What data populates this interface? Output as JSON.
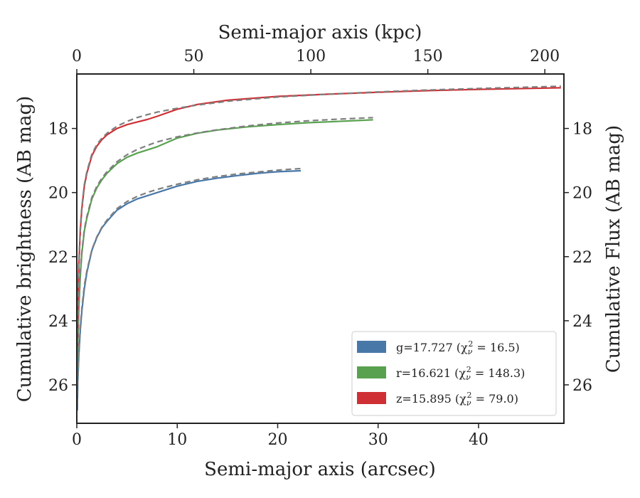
{
  "chart_data": {
    "type": "line",
    "xlabel_bottom": "Semi-major axis (arcsec)",
    "xlabel_top": "Semi-major axis (kpc)",
    "ylabel_left": "Cumulative brightness (AB mag)",
    "ylabel_right": "Cumulative Flux (AB mag)",
    "xlim": [
      0,
      48.5
    ],
    "ylim": [
      27.2,
      16.3
    ],
    "y_inverted": true,
    "x_ticks": [
      "0",
      "10",
      "20",
      "30",
      "40"
    ],
    "x_tick_values": [
      0,
      10,
      20,
      30,
      40
    ],
    "x_top_ticks": [
      "0",
      "50",
      "100",
      "150",
      "200"
    ],
    "x_top_tick_values_arcsec": [
      0,
      11.65,
      23.3,
      34.95,
      46.6
    ],
    "y_ticks": [
      "18",
      "20",
      "22",
      "24",
      "26"
    ],
    "y_tick_values": [
      18,
      20,
      22,
      24,
      26
    ],
    "grid": false,
    "legend_position": "lower-right",
    "legend": [
      {
        "band": "g",
        "label": "g=17.727 (χ",
        "sub": "ν",
        "sup": "2",
        "label_tail": " = 16.5)",
        "color": "#4878a8"
      },
      {
        "band": "r",
        "label": "r=16.621 (χ",
        "sub": "ν",
        "sup": "2",
        "label_tail": " = 148.3)",
        "color": "#59a14f"
      },
      {
        "band": "z",
        "label": "z=15.895 (χ",
        "sub": "ν",
        "sup": "2",
        "label_tail": " = 79.0)",
        "color": "#cf3035"
      }
    ],
    "series": [
      {
        "name": "g",
        "color": "#4878a8",
        "x": [
          0.05,
          0.1,
          0.2,
          0.35,
          0.5,
          0.75,
          1.0,
          1.5,
          2,
          2.5,
          3,
          4,
          5,
          6,
          7,
          8,
          10,
          12,
          14,
          16,
          18,
          20,
          22.3
        ],
        "y": [
          26.8,
          25.9,
          25.1,
          24.3,
          23.7,
          23.0,
          22.5,
          21.8,
          21.4,
          21.1,
          20.9,
          20.55,
          20.35,
          20.2,
          20.1,
          20.0,
          19.8,
          19.65,
          19.55,
          19.47,
          19.4,
          19.35,
          19.32
        ],
        "model_x": [
          0.05,
          0.1,
          0.2,
          0.35,
          0.5,
          0.75,
          1.0,
          1.5,
          2,
          2.5,
          3,
          4,
          5,
          6,
          7,
          8,
          10,
          12,
          14,
          16,
          18,
          20,
          22.3
        ],
        "model_y": [
          26.6,
          25.8,
          25.0,
          24.2,
          23.6,
          22.9,
          22.45,
          21.78,
          21.38,
          21.08,
          20.86,
          20.5,
          20.28,
          20.12,
          20.0,
          19.9,
          19.74,
          19.6,
          19.5,
          19.42,
          19.36,
          19.3,
          19.25
        ]
      },
      {
        "name": "r",
        "color": "#59a14f",
        "x": [
          0.05,
          0.1,
          0.2,
          0.35,
          0.5,
          0.75,
          1.0,
          1.5,
          2,
          2.5,
          3,
          4,
          5,
          6,
          7,
          8,
          10,
          12,
          14,
          17,
          20,
          23,
          26,
          29.5
        ],
        "y": [
          25.8,
          24.8,
          23.7,
          22.6,
          21.9,
          21.2,
          20.8,
          20.2,
          19.85,
          19.6,
          19.4,
          19.1,
          18.9,
          18.77,
          18.67,
          18.57,
          18.3,
          18.15,
          18.05,
          17.95,
          17.88,
          17.82,
          17.78,
          17.73
        ],
        "model_x": [
          0.05,
          0.1,
          0.2,
          0.35,
          0.5,
          0.75,
          1.0,
          1.5,
          2,
          2.5,
          3,
          4,
          5,
          6,
          7,
          8,
          10,
          12,
          14,
          17,
          20,
          23,
          26,
          29.5
        ],
        "model_y": [
          25.7,
          24.7,
          23.6,
          22.5,
          21.85,
          21.15,
          20.75,
          20.15,
          19.8,
          19.55,
          19.35,
          19.04,
          18.82,
          18.66,
          18.53,
          18.42,
          18.26,
          18.14,
          18.04,
          17.92,
          17.83,
          17.76,
          17.71,
          17.66
        ]
      },
      {
        "name": "z",
        "color": "#cf3035",
        "x": [
          0.05,
          0.1,
          0.2,
          0.35,
          0.5,
          0.75,
          1.0,
          1.5,
          2,
          2.5,
          3,
          4,
          5,
          6,
          7,
          8,
          10,
          12,
          15,
          20,
          25,
          30,
          35,
          40,
          45,
          48.2
        ],
        "y": [
          24.8,
          23.6,
          22.3,
          21.2,
          20.5,
          19.8,
          19.4,
          18.85,
          18.55,
          18.35,
          18.2,
          18.0,
          17.88,
          17.8,
          17.72,
          17.62,
          17.4,
          17.25,
          17.12,
          17.0,
          16.93,
          16.87,
          16.82,
          16.78,
          16.75,
          16.73
        ],
        "model_x": [
          0.05,
          0.1,
          0.2,
          0.35,
          0.5,
          0.75,
          1.0,
          1.5,
          2,
          2.5,
          3,
          4,
          5,
          6,
          7,
          8,
          10,
          12,
          15,
          20,
          25,
          30,
          35,
          40,
          45,
          48.2
        ],
        "model_y": [
          24.7,
          23.5,
          22.2,
          21.1,
          20.45,
          19.75,
          19.35,
          18.8,
          18.5,
          18.3,
          18.15,
          17.93,
          17.78,
          17.66,
          17.57,
          17.49,
          17.37,
          17.27,
          17.15,
          17.02,
          16.93,
          16.86,
          16.8,
          16.75,
          16.71,
          16.68
        ]
      }
    ]
  }
}
